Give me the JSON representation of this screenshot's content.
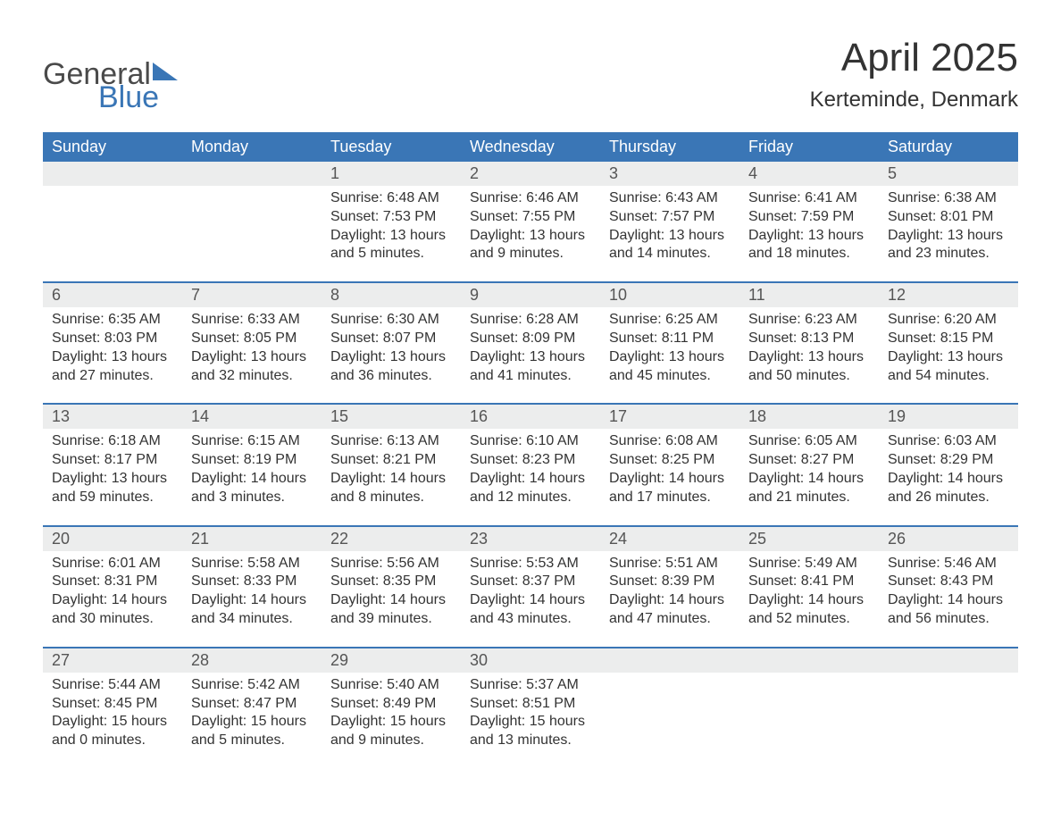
{
  "logo": {
    "text1": "General",
    "text2": "Blue"
  },
  "title": "April 2025",
  "subtitle": "Kerteminde, Denmark",
  "colors": {
    "header_bg": "#3a76b6",
    "header_text": "#ffffff",
    "daynum_bg": "#eceded",
    "border": "#3a76b6",
    "body_text": "#333333",
    "logo_gray": "#4a4a4a",
    "logo_blue": "#3a76b6",
    "page_bg": "#ffffff"
  },
  "day_headers": [
    "Sunday",
    "Monday",
    "Tuesday",
    "Wednesday",
    "Thursday",
    "Friday",
    "Saturday"
  ],
  "weeks": [
    [
      {
        "day": "",
        "sunrise": "",
        "sunset": "",
        "daylight": ""
      },
      {
        "day": "",
        "sunrise": "",
        "sunset": "",
        "daylight": ""
      },
      {
        "day": "1",
        "sunrise": "Sunrise: 6:48 AM",
        "sunset": "Sunset: 7:53 PM",
        "daylight": "Daylight: 13 hours and 5 minutes."
      },
      {
        "day": "2",
        "sunrise": "Sunrise: 6:46 AM",
        "sunset": "Sunset: 7:55 PM",
        "daylight": "Daylight: 13 hours and 9 minutes."
      },
      {
        "day": "3",
        "sunrise": "Sunrise: 6:43 AM",
        "sunset": "Sunset: 7:57 PM",
        "daylight": "Daylight: 13 hours and 14 minutes."
      },
      {
        "day": "4",
        "sunrise": "Sunrise: 6:41 AM",
        "sunset": "Sunset: 7:59 PM",
        "daylight": "Daylight: 13 hours and 18 minutes."
      },
      {
        "day": "5",
        "sunrise": "Sunrise: 6:38 AM",
        "sunset": "Sunset: 8:01 PM",
        "daylight": "Daylight: 13 hours and 23 minutes."
      }
    ],
    [
      {
        "day": "6",
        "sunrise": "Sunrise: 6:35 AM",
        "sunset": "Sunset: 8:03 PM",
        "daylight": "Daylight: 13 hours and 27 minutes."
      },
      {
        "day": "7",
        "sunrise": "Sunrise: 6:33 AM",
        "sunset": "Sunset: 8:05 PM",
        "daylight": "Daylight: 13 hours and 32 minutes."
      },
      {
        "day": "8",
        "sunrise": "Sunrise: 6:30 AM",
        "sunset": "Sunset: 8:07 PM",
        "daylight": "Daylight: 13 hours and 36 minutes."
      },
      {
        "day": "9",
        "sunrise": "Sunrise: 6:28 AM",
        "sunset": "Sunset: 8:09 PM",
        "daylight": "Daylight: 13 hours and 41 minutes."
      },
      {
        "day": "10",
        "sunrise": "Sunrise: 6:25 AM",
        "sunset": "Sunset: 8:11 PM",
        "daylight": "Daylight: 13 hours and 45 minutes."
      },
      {
        "day": "11",
        "sunrise": "Sunrise: 6:23 AM",
        "sunset": "Sunset: 8:13 PM",
        "daylight": "Daylight: 13 hours and 50 minutes."
      },
      {
        "day": "12",
        "sunrise": "Sunrise: 6:20 AM",
        "sunset": "Sunset: 8:15 PM",
        "daylight": "Daylight: 13 hours and 54 minutes."
      }
    ],
    [
      {
        "day": "13",
        "sunrise": "Sunrise: 6:18 AM",
        "sunset": "Sunset: 8:17 PM",
        "daylight": "Daylight: 13 hours and 59 minutes."
      },
      {
        "day": "14",
        "sunrise": "Sunrise: 6:15 AM",
        "sunset": "Sunset: 8:19 PM",
        "daylight": "Daylight: 14 hours and 3 minutes."
      },
      {
        "day": "15",
        "sunrise": "Sunrise: 6:13 AM",
        "sunset": "Sunset: 8:21 PM",
        "daylight": "Daylight: 14 hours and 8 minutes."
      },
      {
        "day": "16",
        "sunrise": "Sunrise: 6:10 AM",
        "sunset": "Sunset: 8:23 PM",
        "daylight": "Daylight: 14 hours and 12 minutes."
      },
      {
        "day": "17",
        "sunrise": "Sunrise: 6:08 AM",
        "sunset": "Sunset: 8:25 PM",
        "daylight": "Daylight: 14 hours and 17 minutes."
      },
      {
        "day": "18",
        "sunrise": "Sunrise: 6:05 AM",
        "sunset": "Sunset: 8:27 PM",
        "daylight": "Daylight: 14 hours and 21 minutes."
      },
      {
        "day": "19",
        "sunrise": "Sunrise: 6:03 AM",
        "sunset": "Sunset: 8:29 PM",
        "daylight": "Daylight: 14 hours and 26 minutes."
      }
    ],
    [
      {
        "day": "20",
        "sunrise": "Sunrise: 6:01 AM",
        "sunset": "Sunset: 8:31 PM",
        "daylight": "Daylight: 14 hours and 30 minutes."
      },
      {
        "day": "21",
        "sunrise": "Sunrise: 5:58 AM",
        "sunset": "Sunset: 8:33 PM",
        "daylight": "Daylight: 14 hours and 34 minutes."
      },
      {
        "day": "22",
        "sunrise": "Sunrise: 5:56 AM",
        "sunset": "Sunset: 8:35 PM",
        "daylight": "Daylight: 14 hours and 39 minutes."
      },
      {
        "day": "23",
        "sunrise": "Sunrise: 5:53 AM",
        "sunset": "Sunset: 8:37 PM",
        "daylight": "Daylight: 14 hours and 43 minutes."
      },
      {
        "day": "24",
        "sunrise": "Sunrise: 5:51 AM",
        "sunset": "Sunset: 8:39 PM",
        "daylight": "Daylight: 14 hours and 47 minutes."
      },
      {
        "day": "25",
        "sunrise": "Sunrise: 5:49 AM",
        "sunset": "Sunset: 8:41 PM",
        "daylight": "Daylight: 14 hours and 52 minutes."
      },
      {
        "day": "26",
        "sunrise": "Sunrise: 5:46 AM",
        "sunset": "Sunset: 8:43 PM",
        "daylight": "Daylight: 14 hours and 56 minutes."
      }
    ],
    [
      {
        "day": "27",
        "sunrise": "Sunrise: 5:44 AM",
        "sunset": "Sunset: 8:45 PM",
        "daylight": "Daylight: 15 hours and 0 minutes."
      },
      {
        "day": "28",
        "sunrise": "Sunrise: 5:42 AM",
        "sunset": "Sunset: 8:47 PM",
        "daylight": "Daylight: 15 hours and 5 minutes."
      },
      {
        "day": "29",
        "sunrise": "Sunrise: 5:40 AM",
        "sunset": "Sunset: 8:49 PM",
        "daylight": "Daylight: 15 hours and 9 minutes."
      },
      {
        "day": "30",
        "sunrise": "Sunrise: 5:37 AM",
        "sunset": "Sunset: 8:51 PM",
        "daylight": "Daylight: 15 hours and 13 minutes."
      },
      {
        "day": "",
        "sunrise": "",
        "sunset": "",
        "daylight": ""
      },
      {
        "day": "",
        "sunrise": "",
        "sunset": "",
        "daylight": ""
      },
      {
        "day": "",
        "sunrise": "",
        "sunset": "",
        "daylight": ""
      }
    ]
  ]
}
